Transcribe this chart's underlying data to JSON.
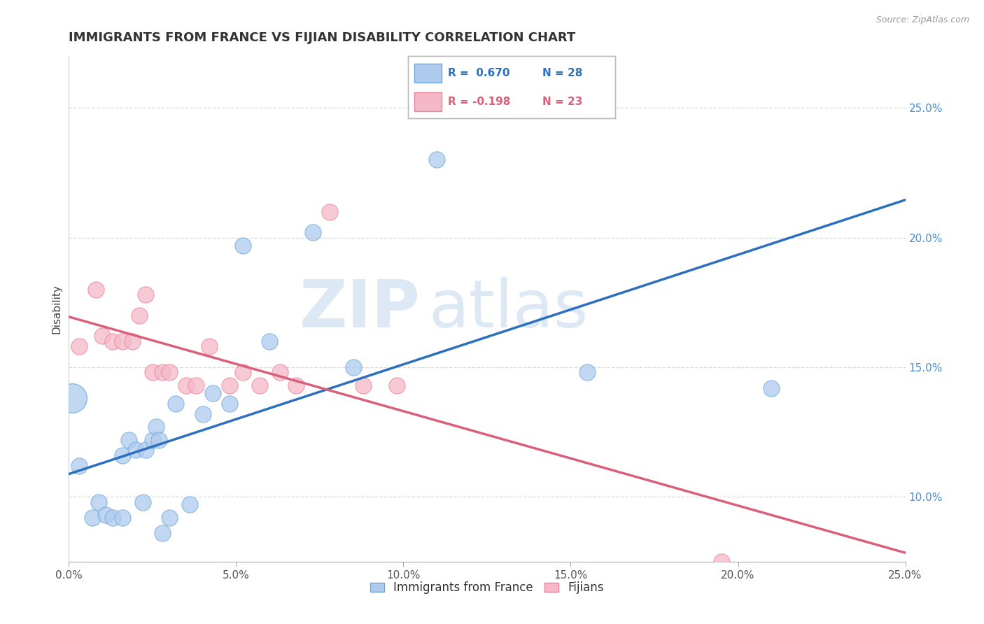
{
  "title": "IMMIGRANTS FROM FRANCE VS FIJIAN DISABILITY CORRELATION CHART",
  "source": "Source: ZipAtlas.com",
  "ylabel": "Disability",
  "xlim": [
    0.0,
    0.25
  ],
  "ylim": [
    0.075,
    0.27
  ],
  "yticks": [
    0.1,
    0.15,
    0.2,
    0.25
  ],
  "xticks": [
    0.0,
    0.05,
    0.1,
    0.15,
    0.2,
    0.25
  ],
  "blue_color": "#aecbee",
  "pink_color": "#f5b8c8",
  "blue_edge_color": "#6baad8",
  "pink_edge_color": "#e8829a",
  "blue_line_color": "#2c6fbe",
  "pink_line_color": "#d9607a",
  "legend_r_blue": "R =  0.670",
  "legend_n_blue": "N = 28",
  "legend_r_pink": "R = -0.198",
  "legend_n_pink": "N = 23",
  "blue_scatter_x": [
    0.003,
    0.007,
    0.009,
    0.011,
    0.013,
    0.016,
    0.016,
    0.018,
    0.02,
    0.022,
    0.023,
    0.025,
    0.026,
    0.027,
    0.028,
    0.03,
    0.032,
    0.036,
    0.04,
    0.043,
    0.048,
    0.052,
    0.06,
    0.073,
    0.085,
    0.11,
    0.155,
    0.21
  ],
  "blue_scatter_y": [
    0.112,
    0.092,
    0.098,
    0.093,
    0.092,
    0.092,
    0.116,
    0.122,
    0.118,
    0.098,
    0.118,
    0.122,
    0.127,
    0.122,
    0.086,
    0.092,
    0.136,
    0.097,
    0.132,
    0.14,
    0.136,
    0.197,
    0.16,
    0.202,
    0.15,
    0.23,
    0.148,
    0.142
  ],
  "pink_scatter_x": [
    0.003,
    0.008,
    0.01,
    0.013,
    0.016,
    0.019,
    0.021,
    0.023,
    0.025,
    0.028,
    0.03,
    0.035,
    0.038,
    0.042,
    0.048,
    0.052,
    0.057,
    0.063,
    0.068,
    0.078,
    0.088,
    0.098,
    0.195
  ],
  "pink_scatter_y": [
    0.158,
    0.18,
    0.162,
    0.16,
    0.16,
    0.16,
    0.17,
    0.178,
    0.148,
    0.148,
    0.148,
    0.143,
    0.143,
    0.158,
    0.143,
    0.148,
    0.143,
    0.148,
    0.143,
    0.21,
    0.143,
    0.143,
    0.075
  ],
  "blue_large_x": [
    0.001
  ],
  "blue_large_y": [
    0.138
  ],
  "background_color": "#ffffff",
  "grid_color": "#d8d8d8",
  "watermark_text": "ZIP",
  "watermark_text2": "atlas"
}
